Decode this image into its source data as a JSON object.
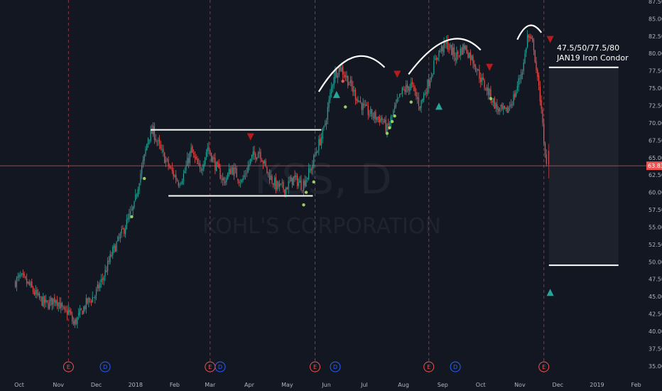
{
  "chart_data": {
    "type": "candlestick",
    "symbol": "KSS",
    "interval": "D",
    "watermark_title": "KSS, D",
    "watermark_subtitle": "KOHL'S CORPORATION",
    "x_ticks": [
      "Oct",
      "Nov",
      "Dec",
      "2018",
      "Feb",
      "Mar",
      "Apr",
      "May",
      "Jun",
      "Jul",
      "Aug",
      "Sep",
      "Oct",
      "Nov",
      "Dec",
      "2019",
      "Feb"
    ],
    "y_ticks": [
      35.0,
      37.5,
      40.0,
      42.5,
      45.0,
      47.5,
      50.0,
      52.5,
      55.0,
      57.5,
      60.0,
      62.5,
      65.0,
      67.5,
      70.0,
      72.5,
      75.0,
      77.5,
      80.0,
      82.5,
      85.0,
      87.5
    ],
    "ylim": [
      34.0,
      88.0
    ],
    "last_price": "63.83",
    "price_path": [
      [
        "2017-09-28",
        47.0
      ],
      [
        "2017-10-03",
        47.8
      ],
      [
        "2017-10-10",
        46.6
      ],
      [
        "2017-10-17",
        44.8
      ],
      [
        "2017-10-24",
        43.8
      ],
      [
        "2017-10-31",
        44.8
      ],
      [
        "2017-11-07",
        42.5
      ],
      [
        "2017-11-10",
        43.0
      ],
      [
        "2017-11-14",
        41.0
      ],
      [
        "2017-11-17",
        41.8
      ],
      [
        "2017-11-24",
        44.0
      ],
      [
        "2017-12-01",
        45.2
      ],
      [
        "2017-12-08",
        48.0
      ],
      [
        "2017-12-15",
        51.5
      ],
      [
        "2017-12-22",
        54.0
      ],
      [
        "2018-01-01",
        58.0
      ],
      [
        "2018-01-05",
        62.0
      ],
      [
        "2018-01-09",
        65.0
      ],
      [
        "2018-01-12",
        68.0
      ],
      [
        "2018-01-16",
        68.8
      ],
      [
        "2018-01-22",
        66.0
      ],
      [
        "2018-01-29",
        63.5
      ],
      [
        "2018-02-05",
        61.5
      ],
      [
        "2018-02-09",
        62.5
      ],
      [
        "2018-02-15",
        66.0
      ],
      [
        "2018-02-22",
        63.0
      ],
      [
        "2018-02-28",
        66.5
      ],
      [
        "2018-03-06",
        64.0
      ],
      [
        "2018-03-13",
        61.5
      ],
      [
        "2018-03-19",
        63.5
      ],
      [
        "2018-03-27",
        61.5
      ],
      [
        "2018-04-04",
        65.0
      ],
      [
        "2018-04-10",
        66.0
      ],
      [
        "2018-04-16",
        63.0
      ],
      [
        "2018-04-23",
        61.0
      ],
      [
        "2018-04-30",
        60.5
      ],
      [
        "2018-05-07",
        62.0
      ],
      [
        "2018-05-14",
        61.0
      ],
      [
        "2018-05-21",
        63.5
      ],
      [
        "2018-05-25",
        66.0
      ],
      [
        "2018-05-31",
        69.0
      ],
      [
        "2018-06-04",
        73.0
      ],
      [
        "2018-06-08",
        77.0
      ],
      [
        "2018-06-13",
        78.0
      ],
      [
        "2018-06-18",
        76.5
      ],
      [
        "2018-06-25",
        74.0
      ],
      [
        "2018-07-02",
        72.0
      ],
      [
        "2018-07-09",
        71.0
      ],
      [
        "2018-07-16",
        70.5
      ],
      [
        "2018-07-20",
        69.0
      ],
      [
        "2018-07-26",
        72.0
      ],
      [
        "2018-08-01",
        74.5
      ],
      [
        "2018-08-08",
        75.5
      ],
      [
        "2018-08-15",
        72.5
      ],
      [
        "2018-08-22",
        76.0
      ],
      [
        "2018-08-29",
        80.0
      ],
      [
        "2018-09-05",
        81.5
      ],
      [
        "2018-09-12",
        79.5
      ],
      [
        "2018-09-19",
        81.0
      ],
      [
        "2018-09-26",
        79.0
      ],
      [
        "2018-10-03",
        76.0
      ],
      [
        "2018-10-08",
        74.5
      ],
      [
        "2018-10-15",
        72.0
      ],
      [
        "2018-10-22",
        71.5
      ],
      [
        "2018-10-29",
        74.0
      ],
      [
        "2018-11-05",
        78.5
      ],
      [
        "2018-11-08",
        82.5
      ],
      [
        "2018-11-13",
        81.0
      ],
      [
        "2018-11-16",
        76.0
      ],
      [
        "2018-11-19",
        72.5
      ],
      [
        "2018-11-21",
        66.5
      ],
      [
        "2018-11-23",
        63.83
      ]
    ],
    "rectangle_box": {
      "from": "2018-01-13",
      "to": "2018-05-28",
      "top": 69.0,
      "bottom": 59.5
    },
    "head_and_shoulders_arcs": [
      {
        "from": "2018-05-26",
        "peak_date": "2018-06-22",
        "to": "2018-07-17",
        "peak": 81.5
      },
      {
        "from": "2018-08-05",
        "peak_date": "2018-09-07",
        "to": "2018-10-01",
        "peak": 84.0
      },
      {
        "from": "2018-10-30",
        "peak_date": "2018-11-08",
        "to": "2018-11-18",
        "peak": 84.5
      }
    ],
    "iron_condor": {
      "label_strikes": "47.5/50/77.5/80",
      "label_name": "JAN19 Iron Condor",
      "from": "2018-11-24",
      "to": "2019-01-18",
      "upper": 78.0,
      "lower": 49.5
    },
    "earnings_dates": [
      "2017-11-09",
      "2018-03-01",
      "2018-05-23",
      "2018-08-21",
      "2018-11-20"
    ],
    "dividend_dates": [
      "2017-12-08",
      "2018-03-09",
      "2018-06-08",
      "2018-09-11"
    ],
    "event_labels": {
      "earnings": "E",
      "dividend": "D"
    },
    "signals_up": [
      {
        "date": "2018-06-09",
        "price": 74.0
      },
      {
        "date": "2018-08-29",
        "price": 72.3
      },
      {
        "date": "2018-11-25",
        "price": 45.5
      }
    ],
    "signals_down": [
      {
        "date": "2018-04-02",
        "price": 68.0
      },
      {
        "date": "2018-07-27",
        "price": 77.0
      },
      {
        "date": "2018-10-08",
        "price": 78.0
      },
      {
        "date": "2018-11-25",
        "price": 82.0
      }
    ],
    "signal_dots": [
      {
        "date": "2018-01-08",
        "price": 62.0,
        "c": "g"
      },
      {
        "date": "2017-12-29",
        "price": 56.5,
        "c": "g"
      },
      {
        "date": "2018-05-14",
        "price": 58.2,
        "c": "g"
      },
      {
        "date": "2018-05-16",
        "price": 60.0,
        "c": "g"
      },
      {
        "date": "2018-05-22",
        "price": 61.5,
        "c": "g"
      },
      {
        "date": "2018-06-16",
        "price": 72.3,
        "c": "g"
      },
      {
        "date": "2018-07-19",
        "price": 68.5,
        "c": "g"
      },
      {
        "date": "2018-07-21",
        "price": 69.3,
        "c": "g"
      },
      {
        "date": "2018-07-23",
        "price": 70.2,
        "c": "g"
      },
      {
        "date": "2018-07-25",
        "price": 71.0,
        "c": "g"
      },
      {
        "date": "2018-08-07",
        "price": 73.0,
        "c": "g"
      },
      {
        "date": "2018-06-14",
        "price": 76.0,
        "c": "r"
      },
      {
        "date": "2018-10-09",
        "price": 73.5,
        "c": "g"
      }
    ],
    "colors": {
      "background": "#131722",
      "up": "#26a69a",
      "down": "#ef5350",
      "grid_event_line": "#ef5350",
      "last_price_line": "#ef5350",
      "axis_text": "#b2b5be",
      "drawing": "#ffffff",
      "signal_down": "#b71c1c",
      "signal_up": "#26a69a",
      "dot_green": "#9ccc65",
      "dot_red": "#ef5350",
      "earnings_event": "#ef5350",
      "dividend_event": "#2962ff"
    }
  }
}
